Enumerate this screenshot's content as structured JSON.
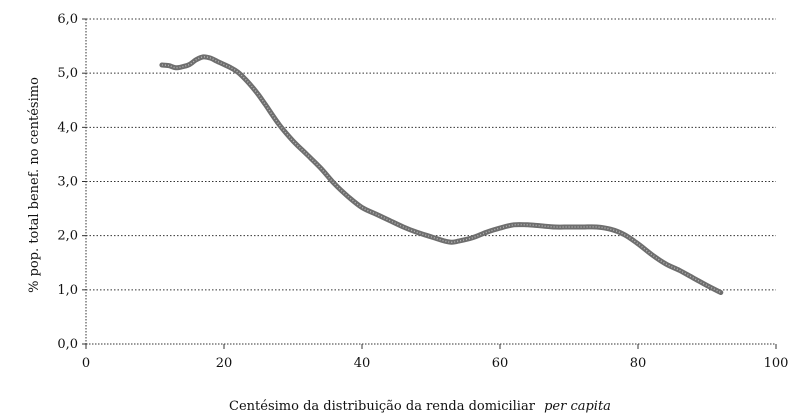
{
  "chart_data": {
    "type": "line",
    "title": "",
    "xlabel_main": "Centésimo da distribuição da renda domiciliar",
    "xlabel_italic": "per capita",
    "ylabel": "% pop. total benef. no centésimo",
    "xlim": [
      0,
      100
    ],
    "ylim": [
      0,
      6
    ],
    "xticks": [
      0,
      20,
      40,
      60,
      80,
      100
    ],
    "xtick_labels": [
      "0",
      "20",
      "40",
      "60",
      "80",
      "100"
    ],
    "yticks": [
      0,
      1,
      2,
      3,
      4,
      5,
      6
    ],
    "ytick_labels": [
      "0,0",
      "1,0",
      "2,0",
      "3,0",
      "4,0",
      "5,0",
      "6,0"
    ],
    "grid": "horizontal dotted",
    "series": [
      {
        "color": "#6e6e6e",
        "x": [
          11,
          12,
          13,
          14,
          15,
          16,
          17,
          18,
          19,
          20,
          21,
          22,
          23,
          24,
          25,
          26,
          28,
          30,
          32,
          34,
          36,
          38,
          40,
          42,
          44,
          46,
          48,
          50,
          52,
          53,
          54,
          56,
          58,
          60,
          62,
          64,
          66,
          68,
          70,
          72,
          74,
          76,
          78,
          80,
          82,
          84,
          86,
          88,
          90,
          92
        ],
        "y": [
          5.15,
          5.14,
          5.1,
          5.12,
          5.16,
          5.25,
          5.3,
          5.28,
          5.22,
          5.16,
          5.1,
          5.02,
          4.9,
          4.76,
          4.6,
          4.42,
          4.05,
          3.75,
          3.5,
          3.25,
          2.96,
          2.72,
          2.52,
          2.4,
          2.28,
          2.16,
          2.06,
          1.98,
          1.9,
          1.88,
          1.9,
          1.96,
          2.06,
          2.14,
          2.2,
          2.2,
          2.18,
          2.16,
          2.16,
          2.16,
          2.16,
          2.12,
          2.02,
          1.85,
          1.65,
          1.48,
          1.36,
          1.22,
          1.08,
          0.95
        ]
      }
    ]
  }
}
